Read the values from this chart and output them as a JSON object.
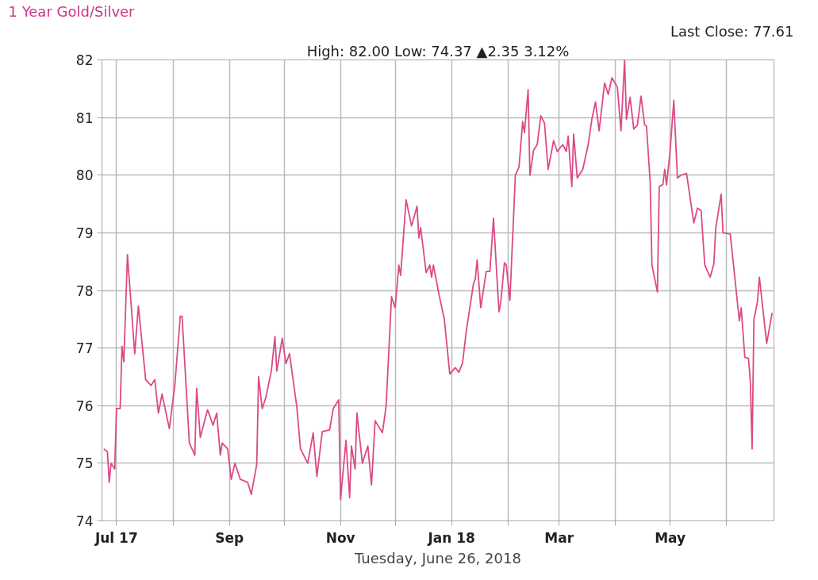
{
  "chart_data": {
    "type": "line",
    "title": "1 Year Gold/Silver",
    "subtitle": "High: 82.00 Low: 74.37 ▲2.35 3.12%",
    "xlabel": "Tuesday, June 26, 2018",
    "annotations": [
      "Last Close: 77.61"
    ],
    "x": [
      "2017-06-24",
      "2017-06-26",
      "2017-06-27",
      "2017-06-28",
      "2017-06-30",
      "2017-07-01",
      "2017-07-03",
      "2017-07-04",
      "2017-07-05",
      "2017-07-07",
      "2017-07-11",
      "2017-07-13",
      "2017-07-17",
      "2017-07-20",
      "2017-07-22",
      "2017-07-24",
      "2017-07-26",
      "2017-07-30",
      "2017-08-02",
      "2017-08-05",
      "2017-08-06",
      "2017-08-10",
      "2017-08-13",
      "2017-08-14",
      "2017-08-16",
      "2017-08-20",
      "2017-08-23",
      "2017-08-25",
      "2017-08-27",
      "2017-08-28",
      "2017-08-31",
      "2017-09-02",
      "2017-09-04",
      "2017-09-07",
      "2017-09-11",
      "2017-09-13",
      "2017-09-16",
      "2017-09-17",
      "2017-09-19",
      "2017-09-21",
      "2017-09-24",
      "2017-09-26",
      "2017-09-27",
      "2017-09-30",
      "2017-10-02",
      "2017-10-04",
      "2017-10-08",
      "2017-10-10",
      "2017-10-14",
      "2017-10-17",
      "2017-10-19",
      "2017-10-22",
      "2017-10-26",
      "2017-10-28",
      "2017-10-31",
      "2017-11-01",
      "2017-11-04",
      "2017-11-06",
      "2017-11-07",
      "2017-11-09",
      "2017-11-10",
      "2017-11-13",
      "2017-11-16",
      "2017-11-18",
      "2017-11-20",
      "2017-11-24",
      "2017-11-26",
      "2017-11-29",
      "2017-12-01",
      "2017-12-03",
      "2017-12-04",
      "2017-12-07",
      "2017-12-10",
      "2017-12-13",
      "2017-12-14",
      "2017-12-15",
      "2017-12-18",
      "2017-12-20",
      "2017-12-21",
      "2017-12-22",
      "2017-12-25",
      "2017-12-28",
      "2017-12-31",
      "2018-01-03",
      "2018-01-05",
      "2018-01-07",
      "2018-01-09",
      "2018-01-13",
      "2018-01-14",
      "2018-01-15",
      "2018-01-17",
      "2018-01-20",
      "2018-01-22",
      "2018-01-24",
      "2018-01-27",
      "2018-01-28",
      "2018-01-30",
      "2018-01-31",
      "2018-02-02",
      "2018-02-05",
      "2018-02-07",
      "2018-02-09",
      "2018-02-10",
      "2018-02-12",
      "2018-02-13",
      "2018-02-15",
      "2018-02-17",
      "2018-02-19",
      "2018-02-21",
      "2018-02-23",
      "2018-02-26",
      "2018-02-28",
      "2018-03-03",
      "2018-03-05",
      "2018-03-06",
      "2018-03-08",
      "2018-03-09",
      "2018-03-11",
      "2018-03-14",
      "2018-03-17",
      "2018-03-19",
      "2018-03-21",
      "2018-03-23",
      "2018-03-26",
      "2018-03-28",
      "2018-03-30",
      "2018-04-02",
      "2018-04-04",
      "2018-04-06",
      "2018-04-07",
      "2018-04-09",
      "2018-04-11",
      "2018-04-13",
      "2018-04-15",
      "2018-04-17",
      "2018-04-18",
      "2018-04-20",
      "2018-04-21",
      "2018-04-24",
      "2018-04-25",
      "2018-04-27",
      "2018-04-28",
      "2018-04-29",
      "2018-05-01",
      "2018-05-03",
      "2018-05-05",
      "2018-05-07",
      "2018-05-10",
      "2018-05-14",
      "2018-05-16",
      "2018-05-18",
      "2018-05-20",
      "2018-05-23",
      "2018-05-25",
      "2018-05-26",
      "2018-05-29",
      "2018-05-30",
      "2018-06-03",
      "2018-06-08",
      "2018-06-09",
      "2018-06-11",
      "2018-06-13",
      "2018-06-14",
      "2018-06-15",
      "2018-06-16",
      "2018-06-18",
      "2018-06-19",
      "2018-06-23",
      "2018-06-26"
    ],
    "series": [
      {
        "color": "#dc4a86",
        "values": [
          75.25,
          75.2,
          74.67,
          75.0,
          74.9,
          75.95,
          75.95,
          77.03,
          76.76,
          78.62,
          76.9,
          77.73,
          76.45,
          76.35,
          76.45,
          75.87,
          76.2,
          75.6,
          76.35,
          77.55,
          77.55,
          75.35,
          75.14,
          76.3,
          75.45,
          75.93,
          75.66,
          75.87,
          75.14,
          75.35,
          75.25,
          74.72,
          75.0,
          74.72,
          74.67,
          74.46,
          74.98,
          76.5,
          75.95,
          76.14,
          76.6,
          77.2,
          76.6,
          77.17,
          76.73,
          76.9,
          75.98,
          75.25,
          75.0,
          75.53,
          74.77,
          75.55,
          75.58,
          75.95,
          76.1,
          74.37,
          75.4,
          74.4,
          75.3,
          74.9,
          75.87,
          75.0,
          75.3,
          74.62,
          75.74,
          75.53,
          75.98,
          77.89,
          77.7,
          78.44,
          78.26,
          79.57,
          79.12,
          79.46,
          78.91,
          79.09,
          78.31,
          78.44,
          78.23,
          78.44,
          77.94,
          77.5,
          76.55,
          76.66,
          76.58,
          76.74,
          77.28,
          78.12,
          78.2,
          78.53,
          77.7,
          78.33,
          78.33,
          79.25,
          77.63,
          77.8,
          78.48,
          78.44,
          77.83,
          80.0,
          80.14,
          80.93,
          80.74,
          81.48,
          80.0,
          80.43,
          80.53,
          81.03,
          80.9,
          80.1,
          80.6,
          80.41,
          80.53,
          80.41,
          80.68,
          79.8,
          80.71,
          79.95,
          80.1,
          80.53,
          80.97,
          81.27,
          80.77,
          81.6,
          81.4,
          81.69,
          81.53,
          80.77,
          82.0,
          80.97,
          81.35,
          80.8,
          80.87,
          81.37,
          80.87,
          80.85,
          79.9,
          78.44,
          77.97,
          79.8,
          79.84,
          80.1,
          79.83,
          80.43,
          81.3,
          79.95,
          80.0,
          80.03,
          79.17,
          79.43,
          79.38,
          78.44,
          78.23,
          78.46,
          79.07,
          79.67,
          79.0,
          78.98,
          77.47,
          77.7,
          76.84,
          76.82,
          76.45,
          75.25,
          77.5,
          77.81,
          78.23,
          77.08,
          77.61
        ]
      }
    ],
    "xlim": [
      "2017-06-23",
      "2018-06-27"
    ],
    "xticks": [
      {
        "value": "2017-07-01",
        "label": "Jul 17"
      },
      {
        "value": "2017-08-01",
        "label": null
      },
      {
        "value": "2017-09-01",
        "label": "Sep"
      },
      {
        "value": "2017-10-01",
        "label": null
      },
      {
        "value": "2017-11-01",
        "label": "Nov"
      },
      {
        "value": "2017-12-01",
        "label": null
      },
      {
        "value": "2018-01-01",
        "label": "Jan 18"
      },
      {
        "value": "2018-02-01",
        "label": null
      },
      {
        "value": "2018-03-01",
        "label": "Mar"
      },
      {
        "value": "2018-04-01",
        "label": null
      },
      {
        "value": "2018-05-01",
        "label": "May"
      },
      {
        "value": "2018-06-01",
        "label": null
      }
    ],
    "ylim": [
      74,
      82
    ],
    "yticks": [
      74,
      75,
      76,
      77,
      78,
      79,
      80,
      81,
      82
    ],
    "grid": true,
    "marker": "none",
    "line_style": "solid"
  }
}
